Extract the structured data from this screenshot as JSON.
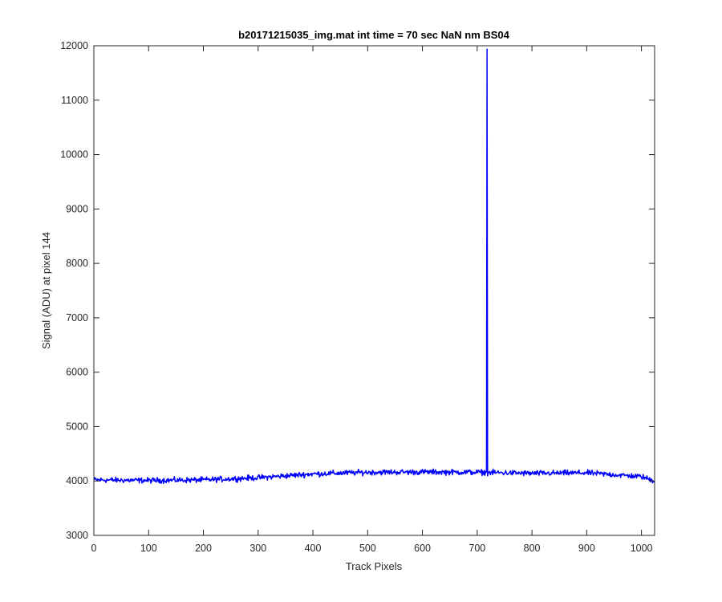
{
  "chart_data": {
    "type": "line",
    "title": "b20171215035_img.mat int time = 70 sec  NaN nm BS04",
    "xlabel": "Track Pixels",
    "ylabel": "Signal (ADU) at pixel 144",
    "xlim": [
      0,
      1024
    ],
    "ylim": [
      3000,
      12000
    ],
    "xticks": [
      0,
      100,
      200,
      300,
      400,
      500,
      600,
      700,
      800,
      900,
      1000
    ],
    "yticks": [
      3000,
      4000,
      5000,
      6000,
      7000,
      8000,
      9000,
      10000,
      11000,
      12000
    ],
    "grid": false,
    "legend": "none",
    "series": [
      {
        "name": "",
        "color": "#0000ff",
        "baseline_profile": {
          "x": [
            0,
            100,
            200,
            300,
            400,
            500,
            600,
            700,
            800,
            900,
            1000,
            1024
          ],
          "y": [
            4020,
            4010,
            4020,
            4060,
            4130,
            4160,
            4165,
            4160,
            4140,
            4150,
            4080,
            4000
          ]
        },
        "noise_amplitude": 45,
        "spike": {
          "x": 718,
          "y": 11940
        }
      }
    ]
  }
}
